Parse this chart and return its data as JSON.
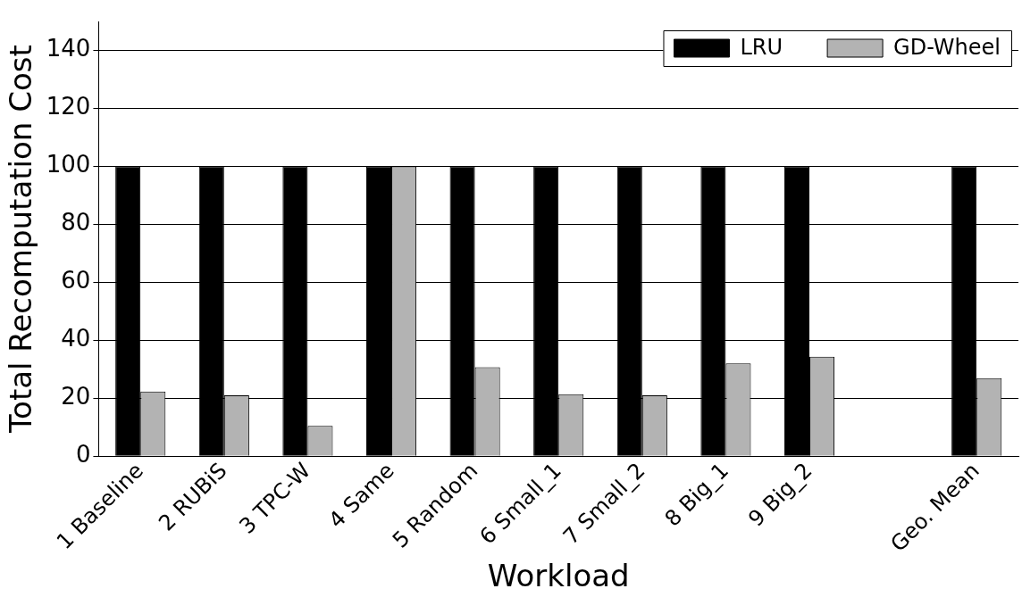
{
  "chart_data": {
    "type": "bar",
    "xlabel": "Workload",
    "ylabel": "Total Recomputation Cost",
    "categories": [
      "1 Baseline",
      "2 RUBiS",
      "3 TPC-W",
      "4 Same",
      "5 Random",
      "6 Small_1",
      "7 Small_2",
      "8 Big_1",
      "9 Big_2",
      null,
      "Geo. Mean"
    ],
    "series": [
      {
        "name": "LRU",
        "color": "#000000",
        "values": [
          100,
          100,
          100,
          100,
          100,
          100,
          100,
          100,
          100,
          null,
          100
        ]
      },
      {
        "name": "GD-Wheel",
        "color": "#b3b3b3",
        "values": [
          22.3,
          21,
          10.4,
          100,
          30.7,
          21.4,
          21,
          32,
          34.3,
          null,
          26.9
        ]
      }
    ],
    "ylim": [
      0,
      150
    ],
    "yticks": [
      0,
      20,
      40,
      60,
      80,
      100,
      120,
      140
    ],
    "grid": "y",
    "legend": "top right"
  }
}
